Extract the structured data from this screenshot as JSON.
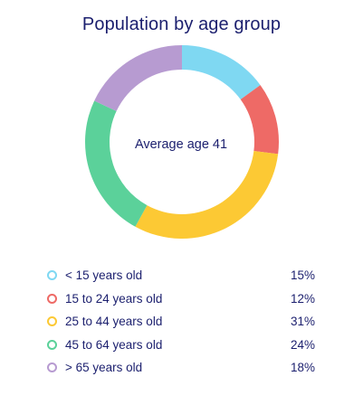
{
  "chart_data": {
    "type": "pie",
    "title": "Population by age group",
    "center_label": "Average age 41",
    "categories": [
      "< 15 years old",
      "15 to 24 years old",
      "25 to 44 years old",
      "45 to 64 years old",
      "> 65 years old"
    ],
    "values": [
      15,
      12,
      31,
      24,
      18
    ],
    "value_labels": [
      "15%",
      "12%",
      "31%",
      "24%",
      "18%"
    ],
    "unit": "%",
    "colors": [
      "#7fd8f2",
      "#ee6a66",
      "#fcc934",
      "#5bd19a",
      "#b79bd1"
    ],
    "donut": true,
    "start_angle_deg": 0,
    "direction": "clockwise",
    "legend_position": "bottom"
  }
}
